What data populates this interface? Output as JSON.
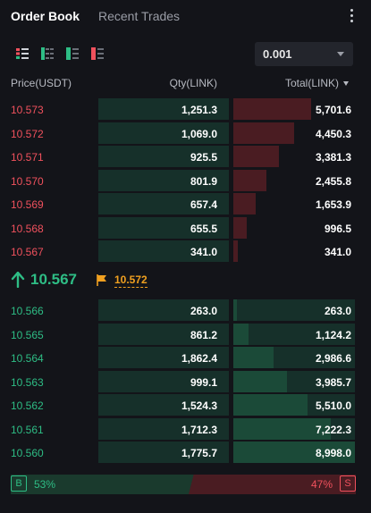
{
  "tabs": {
    "order_book": "Order Book",
    "recent_trades": "Recent Trades"
  },
  "precision": {
    "value": "0.001"
  },
  "columns": {
    "price": "Price(USDT)",
    "qty": "Qty(LINK)",
    "total": "Total(LINK)"
  },
  "asks": [
    {
      "price": "10.573",
      "qty": "1,251.3",
      "total": "5,701.6",
      "depth": 0.637
    },
    {
      "price": "10.572",
      "qty": "1,069.0",
      "total": "4,450.3",
      "depth": 0.497
    },
    {
      "price": "10.571",
      "qty": "925.5",
      "total": "3,381.3",
      "depth": 0.378
    },
    {
      "price": "10.570",
      "qty": "801.9",
      "total": "2,455.8",
      "depth": 0.274
    },
    {
      "price": "10.569",
      "qty": "657.4",
      "total": "1,653.9",
      "depth": 0.185
    },
    {
      "price": "10.568",
      "qty": "655.5",
      "total": "996.5",
      "depth": 0.111
    },
    {
      "price": "10.567",
      "qty": "341.0",
      "total": "341.0",
      "depth": 0.038
    }
  ],
  "mid": {
    "last_price": "10.567",
    "mark_price": "10.572"
  },
  "bids": [
    {
      "price": "10.566",
      "qty": "263.0",
      "total": "263.0",
      "depth": 0.029
    },
    {
      "price": "10.565",
      "qty": "861.2",
      "total": "1,124.2",
      "depth": 0.125
    },
    {
      "price": "10.564",
      "qty": "1,862.4",
      "total": "2,986.6",
      "depth": 0.332
    },
    {
      "price": "10.563",
      "qty": "999.1",
      "total": "3,985.7",
      "depth": 0.443
    },
    {
      "price": "10.562",
      "qty": "1,524.3",
      "total": "5,510.0",
      "depth": 0.612
    },
    {
      "price": "10.561",
      "qty": "1,712.3",
      "total": "7,222.3",
      "depth": 0.803
    },
    {
      "price": "10.560",
      "qty": "1,775.7",
      "total": "8,998.0",
      "depth": 1.0
    }
  ],
  "ratio": {
    "buy_label": "B",
    "buy_pct": "53%",
    "sell_label": "S",
    "sell_pct": "47%",
    "buy_fraction": 0.53
  },
  "colors": {
    "bg": "#131419",
    "ask": "#f0515d",
    "bid": "#2ebd85",
    "mark": "#f0a020"
  },
  "icons": [
    "view-both-icon",
    "view-bids-icon",
    "view-asks-icon",
    "view-depth-icon",
    "kebab-menu-icon",
    "arrow-up-icon",
    "flag-icon",
    "caret-down-icon"
  ]
}
